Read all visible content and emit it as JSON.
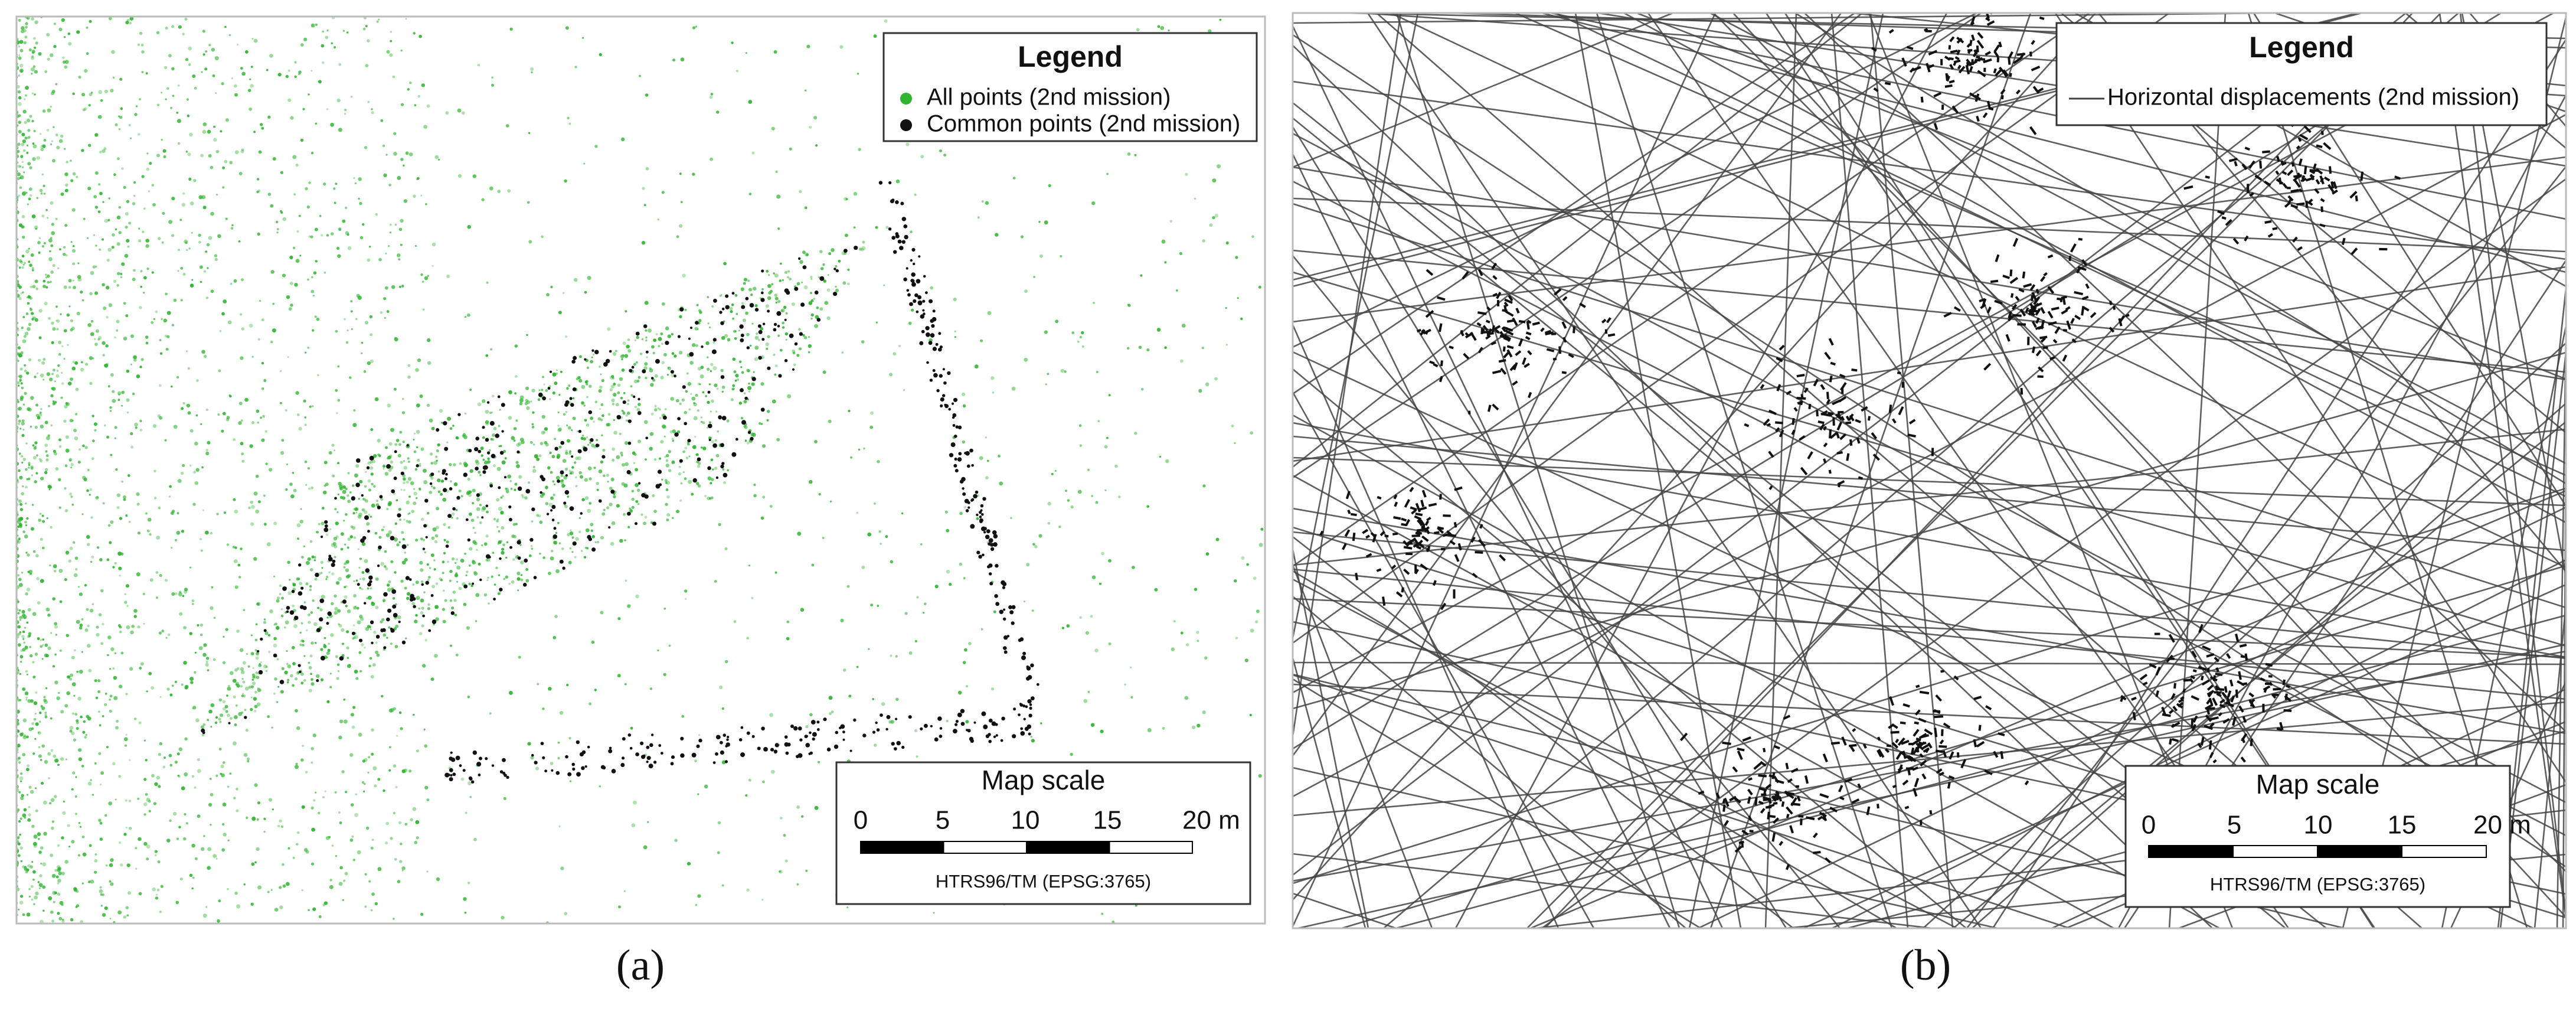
{
  "panels": [
    {
      "label": "(a)",
      "legend": {
        "title": "Legend",
        "items": [
          {
            "label": "All points (2nd mission)",
            "color": "#2fb52f",
            "marker": "dot"
          },
          {
            "label": "Common points (2nd mission)",
            "color": "#111111",
            "marker": "dot"
          }
        ]
      },
      "scale": {
        "title": "Map scale",
        "ticks": [
          "0",
          "5",
          "10",
          "15",
          "20 m"
        ],
        "crs": "HTRS96/TM (EPSG:3765)"
      }
    },
    {
      "label": "(b)",
      "legend": {
        "title": "Legend",
        "items": [
          {
            "label": "Horizontal displacements (2nd mission)",
            "color": "#444444",
            "marker": "line"
          }
        ]
      },
      "scale": {
        "title": "Map scale",
        "ticks": [
          "0",
          "5",
          "10",
          "15",
          "20 m"
        ],
        "crs": "HTRS96/TM (EPSG:3765)"
      }
    }
  ]
}
